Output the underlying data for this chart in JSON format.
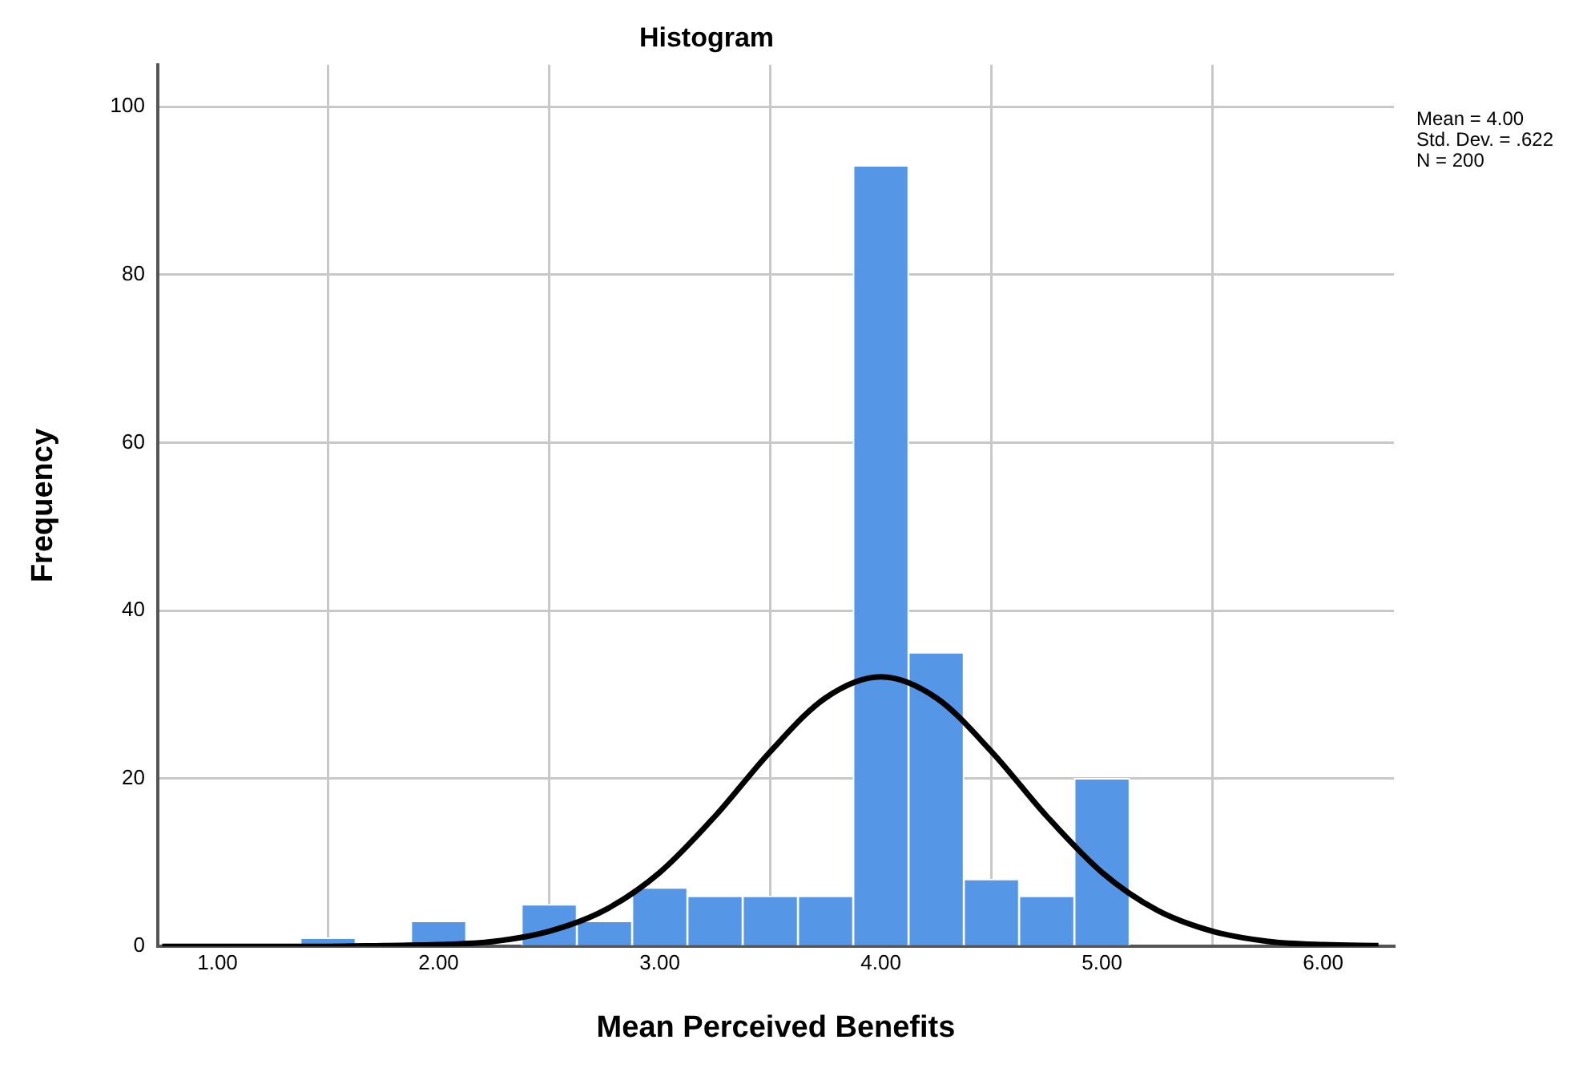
{
  "chart_data": {
    "type": "histogram",
    "title": "Histogram",
    "xlabel": "Mean Perceived Benefits",
    "ylabel": "Frequency",
    "annotations": [
      "Mean = 4.00",
      "Std. Dev. = .622",
      "N = 200"
    ],
    "bins": [
      1.375,
      1.625,
      1.875,
      2.125,
      2.375,
      2.625,
      2.875,
      3.125,
      3.375,
      3.625,
      3.875,
      4.125,
      4.375,
      4.625,
      4.875,
      5.125
    ],
    "values": [
      1,
      0,
      3,
      0,
      5,
      3,
      7,
      6,
      6,
      6,
      93,
      35,
      8,
      6,
      20
    ],
    "color": "#5596e6",
    "series": [
      {
        "type": "line",
        "color": "#000000",
        "x": [
          0.75,
          1.0,
          1.25,
          1.5,
          1.75,
          2.0,
          2.25,
          2.5,
          2.75,
          3.0,
          3.25,
          3.5,
          3.75,
          4.0,
          4.25,
          4.5,
          4.75,
          5.0,
          5.25,
          5.5,
          5.75,
          6.0,
          6.25
        ],
        "values": [
          0,
          0,
          0,
          0,
          0.1,
          0.2,
          0.6,
          1.8,
          4.3,
          8.8,
          15.5,
          23.2,
          29.6,
          32.1,
          29.6,
          23.2,
          15.5,
          8.8,
          4.3,
          1.8,
          0.6,
          0.2,
          0.1
        ]
      }
    ],
    "marker": "none",
    "xlim": [
      0.73,
      6.32
    ],
    "xticks": [
      {
        "value": 1,
        "label": "1.00"
      },
      {
        "value": 2,
        "label": "2.00"
      },
      {
        "value": 3,
        "label": "3.00"
      },
      {
        "value": 4,
        "label": "4.00"
      },
      {
        "value": 5,
        "label": "5.00"
      },
      {
        "value": 6,
        "label": "6.00"
      }
    ],
    "ylim": [
      0,
      105
    ],
    "yticks": [
      0,
      20,
      40,
      60,
      80,
      100
    ],
    "grid": true,
    "legend": false
  }
}
